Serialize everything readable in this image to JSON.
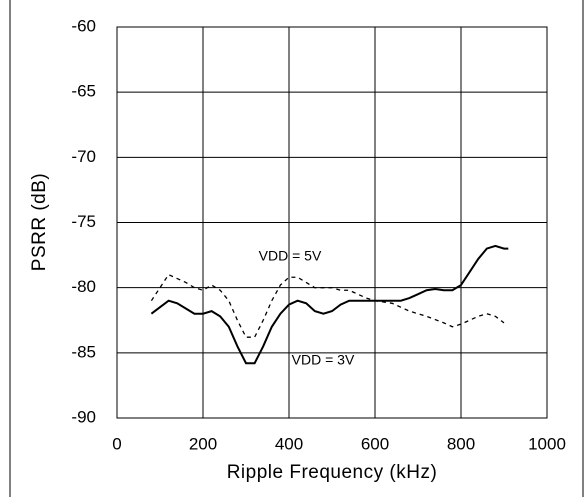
{
  "chart_data": {
    "type": "line",
    "xlabel": "Ripple Frequency (kHz)",
    "ylabel": "PSRR (dB)",
    "xlim": [
      0,
      1000
    ],
    "xticks": [
      0,
      200,
      400,
      600,
      800,
      1000
    ],
    "ylim": [
      -90,
      -60
    ],
    "yticks": [
      -90,
      -85,
      -80,
      -75,
      -70,
      -65,
      -60
    ],
    "grid": true,
    "series": [
      {
        "name": "VDD = 3V",
        "color": "#000000",
        "dash": "solid",
        "x": [
          80,
          100,
          120,
          140,
          160,
          180,
          200,
          220,
          240,
          260,
          280,
          300,
          320,
          340,
          360,
          380,
          400,
          420,
          440,
          460,
          480,
          500,
          520,
          540,
          560,
          600,
          660,
          680,
          700,
          720,
          740,
          760,
          780,
          800,
          820,
          840,
          860,
          880,
          900,
          910
        ],
        "values": [
          -82,
          -81.5,
          -81,
          -81.2,
          -81.6,
          -82,
          -82,
          -81.8,
          -82.2,
          -83,
          -84.5,
          -85.8,
          -85.8,
          -84.5,
          -83,
          -82,
          -81.3,
          -81,
          -81.2,
          -81.8,
          -82,
          -81.8,
          -81.3,
          -81,
          -81,
          -81,
          -81,
          -80.8,
          -80.5,
          -80.2,
          -80.1,
          -80.2,
          -80.2,
          -79.8,
          -78.8,
          -77.8,
          -77,
          -76.8,
          -77,
          -77
        ]
      },
      {
        "name": "VDD = 5V",
        "color": "#000000",
        "dash": "dashed",
        "x": [
          80,
          100,
          120,
          140,
          160,
          180,
          200,
          220,
          240,
          260,
          280,
          300,
          320,
          340,
          360,
          380,
          400,
          420,
          440,
          460,
          480,
          500,
          520,
          540,
          560,
          580,
          600,
          640,
          680,
          720,
          760,
          780,
          800,
          840,
          860,
          880,
          900
        ],
        "values": [
          -81,
          -80,
          -79,
          -79.3,
          -79.6,
          -80,
          -80.2,
          -79.8,
          -80.2,
          -81,
          -82.5,
          -83.8,
          -83.8,
          -82.5,
          -81,
          -79.8,
          -79.2,
          -79.2,
          -79.6,
          -80,
          -80,
          -80,
          -80.2,
          -80.2,
          -80.5,
          -80.8,
          -81,
          -81.2,
          -81.8,
          -82.2,
          -82.7,
          -83,
          -82.8,
          -82.2,
          -82,
          -82.2,
          -82.7
        ]
      }
    ]
  }
}
